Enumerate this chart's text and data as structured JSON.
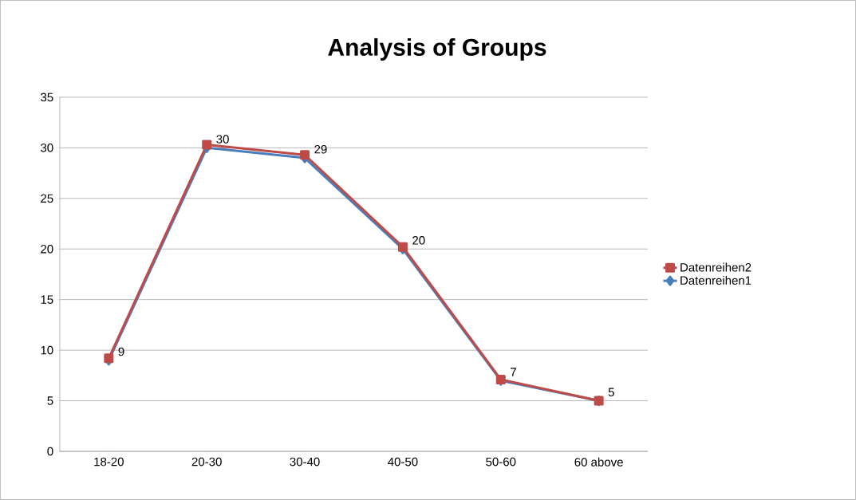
{
  "chart_data": {
    "type": "line",
    "title": "Analysis of Groups",
    "categories": [
      "18-20",
      "20-30",
      "30-40",
      "40-50",
      "50-60",
      "60 above"
    ],
    "series": [
      {
        "name": "Datenreihen1",
        "color": "#4a7ebb",
        "marker": "diamond",
        "values": [
          9,
          30,
          29,
          20,
          7,
          5
        ],
        "value_labels": [
          "9",
          "30",
          "29",
          "20",
          "7",
          "5"
        ]
      },
      {
        "name": "Datenreihen2",
        "color": "#be4b48",
        "marker": "square",
        "values": [
          9.2,
          30.3,
          29.3,
          20.2,
          7.1,
          5.0
        ]
      }
    ],
    "ylim": [
      0,
      35
    ],
    "yticks": [
      0,
      5,
      10,
      15,
      20,
      25,
      30,
      35
    ],
    "grid": "y",
    "legend": "right",
    "line_style": "solid"
  }
}
